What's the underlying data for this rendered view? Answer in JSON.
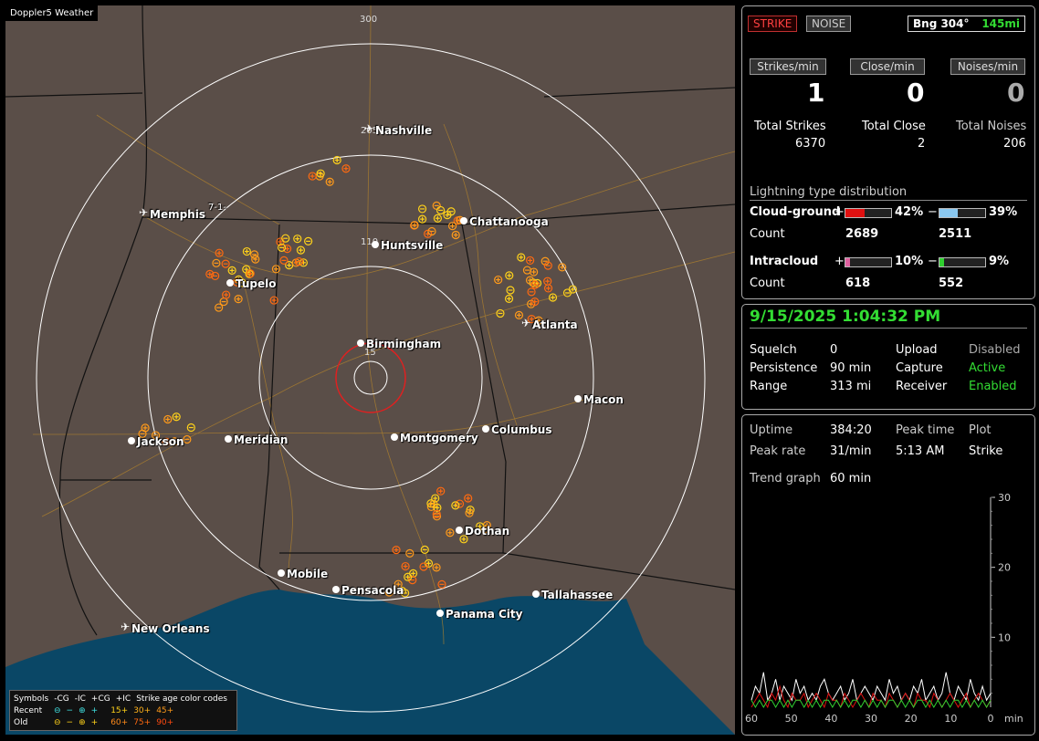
{
  "app": {
    "title": "Doppler5 Weather"
  },
  "map": {
    "ring_labels": [
      "300",
      "205",
      "110",
      "15"
    ],
    "memphis_suffix": "7-1-",
    "cities": [
      {
        "name": "Nashville",
        "icon": "airport-icon"
      },
      {
        "name": "Memphis",
        "icon": "airport-icon"
      },
      {
        "name": "Chattanooga",
        "icon": "city-dot-icon"
      },
      {
        "name": "Huntsville",
        "icon": "city-dot-icon"
      },
      {
        "name": "Tupelo",
        "icon": "city-dot-icon"
      },
      {
        "name": "Atlanta",
        "icon": "airport-icon"
      },
      {
        "name": "Birmingham",
        "icon": "city-dot-icon"
      },
      {
        "name": "Macon",
        "icon": "city-dot-icon"
      },
      {
        "name": "Jackson",
        "icon": "city-dot-icon"
      },
      {
        "name": "Meridian",
        "icon": "city-dot-icon"
      },
      {
        "name": "Montgomery",
        "icon": "city-dot-icon"
      },
      {
        "name": "Columbus",
        "icon": "city-dot-icon"
      },
      {
        "name": "Dothan",
        "icon": "city-dot-icon"
      },
      {
        "name": "Mobile",
        "icon": "city-dot-icon"
      },
      {
        "name": "Pensacola",
        "icon": "city-dot-icon"
      },
      {
        "name": "Tallahassee",
        "icon": "city-dot-icon"
      },
      {
        "name": "Panama City",
        "icon": "city-dot-icon"
      },
      {
        "name": "New Orleans",
        "icon": "airport-icon"
      }
    ],
    "legend": {
      "symbols_label": "Symbols",
      "headers": [
        "-CG",
        "-IC",
        "+CG",
        "+IC"
      ],
      "age_label": "Strike age color codes",
      "recent_label": "Recent",
      "old_label": "Old",
      "recent_ages": [
        "15+",
        "30+",
        "45+"
      ],
      "old_ages": [
        "60+",
        "75+",
        "90+"
      ]
    },
    "colors": {
      "land": "#5a4e48",
      "water": "#0a4766",
      "roads": "#b8862a",
      "rings": "#ffffff",
      "close_ring": "#e02020",
      "strike_recent": "#ffd21a",
      "strike_mid": "#ff9a1a",
      "strike_old": "#ff6a10"
    }
  },
  "top": {
    "strike_button": "STRIKE",
    "noise_button": "NOISE",
    "bearing_label": "Bng 304°",
    "distance": "145mi"
  },
  "rates": {
    "strikes_label": "Strikes/min",
    "strikes_value": "1",
    "close_label": "Close/min",
    "close_value": "0",
    "noises_label": "Noises/min",
    "noises_value": "0"
  },
  "totals": {
    "strikes_label": "Total Strikes",
    "strikes_value": "6370",
    "close_label": "Total Close",
    "close_value": "2",
    "noises_label": "Total Noises",
    "noises_value": "206"
  },
  "distribution": {
    "title": "Lightning type distribution",
    "cg_label": "Cloud-ground",
    "cg_pos_sign": "+",
    "cg_pos_pct": "42%",
    "cg_pos_level": 0.42,
    "cg_pos_color": "#e01010",
    "cg_neg_sign": "−",
    "cg_neg_pct": "39%",
    "cg_neg_level": 0.39,
    "cg_neg_color": "#8ac8f0",
    "count_label": "Count",
    "cg_pos_count": "2689",
    "cg_neg_count": "2511",
    "ic_label": "Intracloud",
    "ic_pos_sign": "+",
    "ic_pos_pct": "10%",
    "ic_pos_level": 0.1,
    "ic_pos_color": "#e060a0",
    "ic_neg_sign": "−",
    "ic_neg_pct": "9%",
    "ic_neg_level": 0.09,
    "ic_neg_color": "#30d030",
    "ic_pos_count": "618",
    "ic_neg_count": "552"
  },
  "status": {
    "datetime": "9/15/2025 1:04:32 PM",
    "squelch_label": "Squelch",
    "squelch_value": "0",
    "persistence_label": "Persistence",
    "persistence_value": "90 min",
    "range_label": "Range",
    "range_value": "313 mi",
    "upload_label": "Upload",
    "upload_value": "Disabled",
    "capture_label": "Capture",
    "capture_value": "Active",
    "receiver_label": "Receiver",
    "receiver_value": "Enabled"
  },
  "stats": {
    "uptime_label": "Uptime",
    "uptime_value": "384:20",
    "peaktime_label": "Peak time",
    "peaktime_value": "5:13 AM",
    "plot_label": "Plot",
    "plot_value": "Strike",
    "peakrate_label": "Peak rate",
    "peakrate_value": "31/min",
    "trend_label": "Trend graph",
    "trend_value": "60 min"
  },
  "chart_data": {
    "type": "line",
    "x_tick_labels": [
      "60",
      "50",
      "40",
      "30",
      "20",
      "10",
      "0"
    ],
    "x_unit": "min",
    "xlim": [
      60,
      0
    ],
    "ylim": [
      0,
      30
    ],
    "y_tick_labels": [
      "10",
      "20",
      "30"
    ],
    "series": [
      {
        "color": "#ffffff",
        "values": [
          1,
          3,
          2,
          5,
          1,
          2,
          4,
          1,
          3,
          2,
          1,
          4,
          2,
          3,
          1,
          2,
          1,
          3,
          4,
          2,
          1,
          2,
          3,
          1,
          2,
          4,
          1,
          2,
          3,
          2,
          1,
          3,
          2,
          1,
          4,
          2,
          3,
          1,
          2,
          1,
          3,
          2,
          4,
          1,
          2,
          3,
          1,
          2,
          5,
          2,
          1,
          3,
          2,
          1,
          4,
          2,
          1,
          3,
          1,
          2
        ]
      },
      {
        "color": "#e01010",
        "values": [
          0,
          1,
          2,
          1,
          0,
          2,
          1,
          3,
          1,
          0,
          2,
          1,
          1,
          2,
          0,
          1,
          2,
          1,
          0,
          2,
          1,
          1,
          0,
          2,
          1,
          0,
          1,
          2,
          1,
          0,
          2,
          1,
          1,
          0,
          2,
          1,
          0,
          1,
          2,
          1,
          0,
          2,
          1,
          1,
          0,
          2,
          1,
          0,
          1,
          2,
          1,
          0,
          1,
          2,
          0,
          1,
          2,
          1,
          0,
          1
        ]
      },
      {
        "color": "#30d030",
        "values": [
          1,
          0,
          1,
          0,
          1,
          1,
          0,
          1,
          0,
          1,
          0,
          1,
          1,
          0,
          1,
          0,
          1,
          0,
          1,
          1,
          0,
          1,
          0,
          1,
          0,
          1,
          1,
          0,
          1,
          0,
          1,
          0,
          1,
          0,
          1,
          1,
          0,
          1,
          0,
          1,
          0,
          1,
          1,
          0,
          1,
          0,
          1,
          0,
          1,
          0,
          1,
          1,
          0,
          1,
          0,
          1,
          0,
          1,
          0,
          1
        ]
      }
    ]
  }
}
